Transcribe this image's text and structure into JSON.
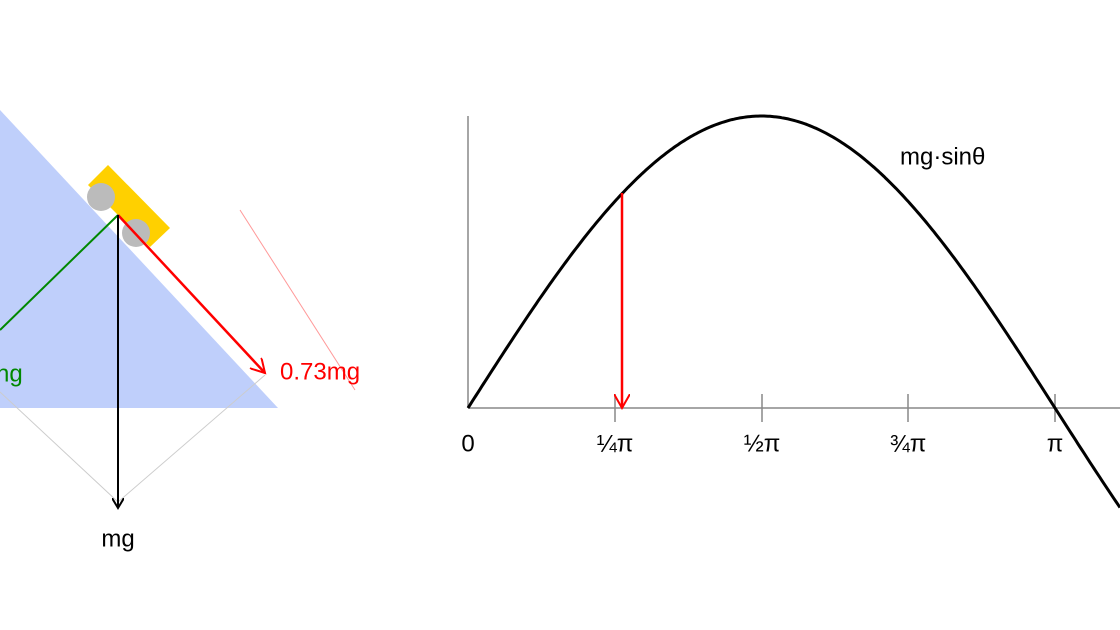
{
  "diagram": {
    "labels": {
      "normal": "ng",
      "parallel": "0.73mg",
      "weight": "mg"
    }
  },
  "graph": {
    "curve_label": "mg·sinθ",
    "ticks": [
      "0",
      "¼π",
      "½π",
      "¾π",
      "π"
    ]
  }
}
